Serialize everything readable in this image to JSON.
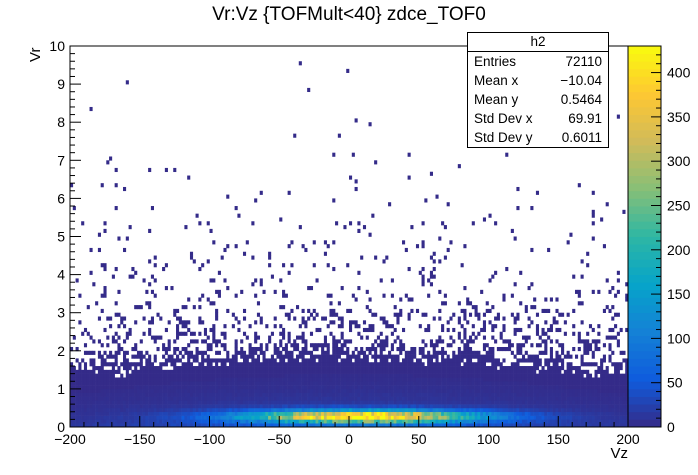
{
  "chart_data": {
    "type": "heatmap",
    "title": "Vr:Vz {TOFMult<40} zdce_TOF0",
    "xlabel": "Vz",
    "ylabel": "Vr",
    "xlim": [
      -200,
      200
    ],
    "ylim": [
      0,
      10
    ],
    "x_ticks": [
      "−200",
      "−150",
      "−100",
      "−50",
      "0",
      "50",
      "100",
      "150",
      "200"
    ],
    "x_tick_values": [
      -200,
      -150,
      -100,
      -50,
      0,
      50,
      100,
      150,
      200
    ],
    "y_ticks": [
      "0",
      "1",
      "2",
      "3",
      "4",
      "5",
      "6",
      "7",
      "8",
      "9",
      "10"
    ],
    "y_tick_values": [
      0,
      1,
      2,
      3,
      4,
      5,
      6,
      7,
      8,
      9,
      10
    ],
    "z_range": [
      0,
      430
    ],
    "z_ticks": [
      "0",
      "50",
      "100",
      "150",
      "200",
      "250",
      "300",
      "350",
      "400"
    ],
    "z_tick_values": [
      0,
      50,
      100,
      150,
      200,
      250,
      300,
      350,
      400
    ],
    "colormap": [
      "#352a87",
      "#0f5cdd",
      "#1481d6",
      "#06a4ca",
      "#2eb7a4",
      "#87bf77",
      "#d1bb59",
      "#fec832",
      "#f9fb0e"
    ],
    "grid": false,
    "stats_box": {
      "name": "h2",
      "entries": [
        {
          "label": "Entries",
          "value": "72110"
        },
        {
          "label": "Mean x",
          "value": "−10.04"
        },
        {
          "label": "Mean y",
          "value": "0.5464"
        },
        {
          "label": "Std Dev x",
          "value": "69.91"
        },
        {
          "label": "Std Dev y",
          "value": "0.6011"
        }
      ]
    }
  }
}
